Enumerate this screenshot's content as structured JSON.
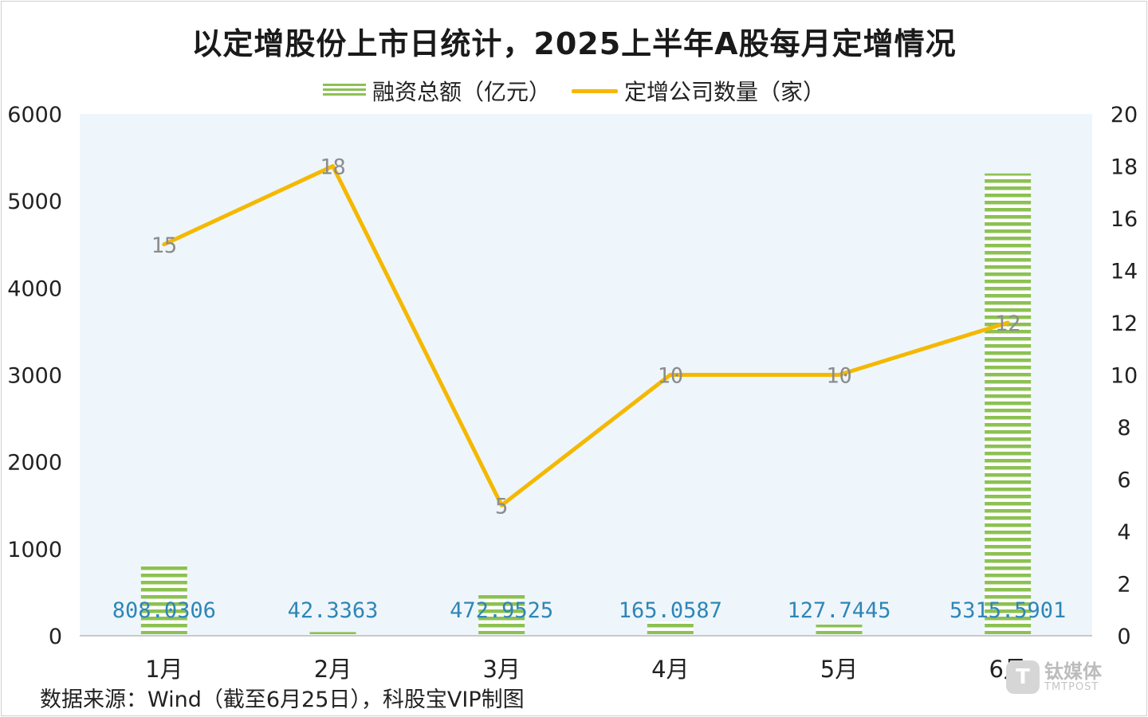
{
  "chart_data": {
    "type": "bar",
    "title": "以定增股份上市日统计，2025上半年A股每月定增情况",
    "categories": [
      "1月",
      "2月",
      "3月",
      "4月",
      "5月",
      "6月"
    ],
    "series": [
      {
        "name": "融资总额（亿元）",
        "type": "bar",
        "axis": "left",
        "values": [
          808.0306,
          42.3363,
          472.9525,
          165.0587,
          127.7445,
          5315.5901
        ],
        "labels": [
          "808.0306",
          "42.3363",
          "472.9525",
          "165.0587",
          "127.7445",
          "5315.5901"
        ]
      },
      {
        "name": "定增公司数量（家）",
        "type": "line",
        "axis": "right",
        "values": [
          15,
          18,
          5,
          10,
          10,
          12
        ],
        "labels": [
          "15",
          "18",
          "5",
          "10",
          "10",
          "12"
        ]
      }
    ],
    "y_left": {
      "min": 0,
      "max": 6000,
      "ticks": [
        "0",
        "1000",
        "2000",
        "3000",
        "4000",
        "5000",
        "6000"
      ]
    },
    "y_right": {
      "min": 0,
      "max": 20,
      "ticks": [
        "0",
        "2",
        "4",
        "6",
        "8",
        "10",
        "12",
        "14",
        "16",
        "18",
        "20"
      ]
    },
    "legend_position": "top",
    "grid": false,
    "colors": {
      "bar": "#8cc152",
      "line": "#f5b800",
      "plot_bg": "#eef6fc",
      "bar_label": "#2f86b6",
      "line_label": "#8c8c8c"
    }
  },
  "source": "数据来源：Wind（截至6月25日），科股宝VIP制图",
  "watermark": {
    "cn": "钛媒体",
    "en": "TMTPOST",
    "logo": "T"
  }
}
